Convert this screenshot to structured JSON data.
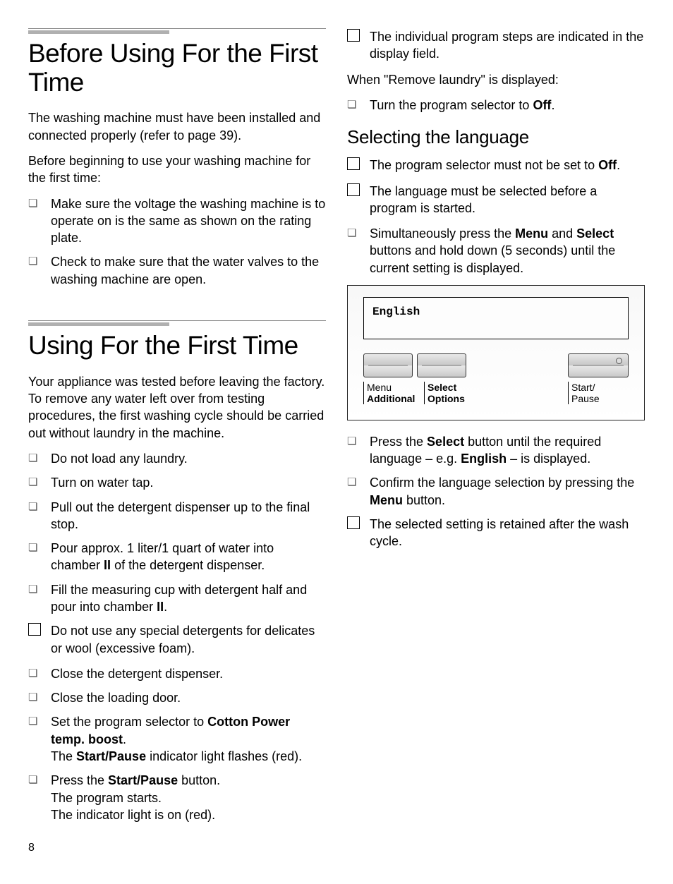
{
  "pageNumber": "8",
  "left": {
    "section1": {
      "title": "Before Using For the First Time",
      "p1": "The washing machine must have been installed and connected properly (refer to page 39).",
      "p2": "Before beginning to use your washing machine for the first time:",
      "b1": "Make sure the voltage the washing machine is to operate on is the same as shown on the rating plate.",
      "b2": "Check to make sure that the water valves to the washing machine are open."
    },
    "section2": {
      "title": "Using For the First Time",
      "p1": "Your appliance was tested before leaving the factory. To remove any water left over from testing procedures, the first washing cycle should be carried out without laundry in the machine.",
      "b1": "Do not load any laundry.",
      "b2": "Turn on water tap.",
      "b3": "Pull out the detergent dispenser up to the final stop.",
      "b4_pre": "Pour approx. 1 liter/1 quart of water into chamber ",
      "b4_bold": "II",
      "b4_post": " of the detergent dispenser.",
      "b5_pre": "Fill the measuring cup with detergent half and pour into chamber ",
      "b5_bold": "II",
      "b5_post": ".",
      "note1": "Do not use any special detergents for delicates or wool (excessive foam).",
      "b6": "Close the detergent dispenser.",
      "b7": "Close the loading door.",
      "b8_pre": "Set the program selector to ",
      "b8_bold": "Cotton Power temp. boost",
      "b8_post": ".",
      "b8_l2_pre": "The ",
      "b8_l2_bold": "Start/Pause",
      "b8_l2_post": " indicator light flashes (red).",
      "b9_pre": "Press the ",
      "b9_bold": "Start/Pause",
      "b9_post": " button.",
      "b9_l2": "The program starts.",
      "b9_l3": "The indicator light is on (red)."
    }
  },
  "right": {
    "note1": "The individual program steps are indicated in the display field.",
    "p1": "When \"Remove laundry\" is displayed:",
    "b1_pre": "Turn the program selector to ",
    "b1_bold": "Off",
    "b1_post": ".",
    "h2": "Selecting the language",
    "note2_pre": "The program selector must not be set to ",
    "note2_bold": "Off",
    "note2_post": ".",
    "note3": "The language must be selected before a program is started.",
    "b2_pre": "Simultaneously press the ",
    "b2_bold1": "Menu",
    "b2_mid": " and ",
    "b2_bold2": "Select",
    "b2_post": " buttons and hold down (5 seconds) until the current setting is displayed.",
    "panel": {
      "display_text": "English",
      "labels": {
        "menu": "Menu",
        "additional": "Additional",
        "select": "Select",
        "options": "Options",
        "start": "Start/",
        "pause": "Pause"
      }
    },
    "b3_pre": "Press the ",
    "b3_bold1": "Select",
    "b3_mid": " button until the required language – e.g. ",
    "b3_bold2": "English",
    "b3_post": " – is displayed.",
    "b4_pre": "Confirm the language selection by pressing the ",
    "b4_bold": "Menu",
    "b4_post": " button.",
    "note4": "The selected setting is retained after the wash cycle."
  }
}
